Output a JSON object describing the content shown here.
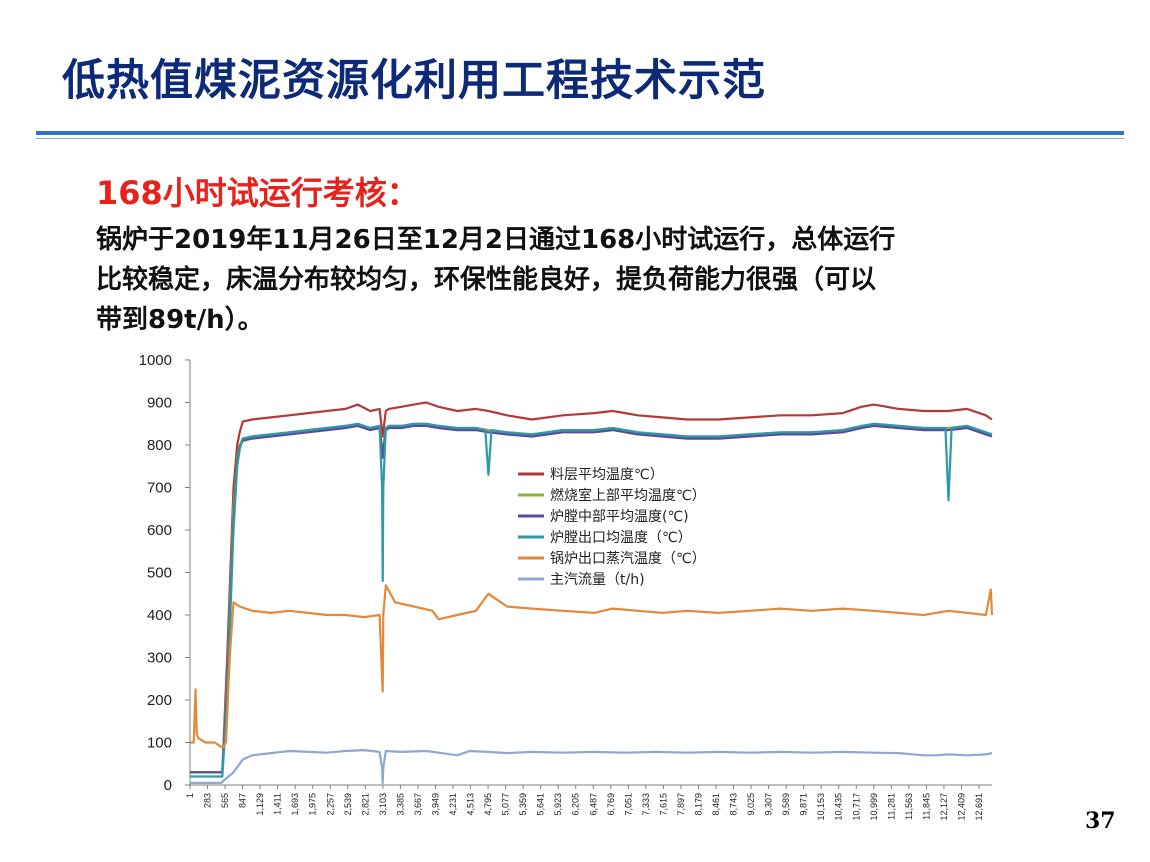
{
  "header": {
    "title": "低热值煤泥资源化利用工程技术示范"
  },
  "section": {
    "heading": "168小时试运行考核：",
    "lines": [
      "锅炉于2019年11月26日至12月2日通过168小时试运行，总体运行",
      "比较稳定，床温分布较均匀，环保性能良好，提负荷能力很强（可以",
      "带到89t/h）。"
    ]
  },
  "page_number": "37",
  "chart_data": {
    "type": "line",
    "title": "",
    "xlabel": "",
    "ylabel": "",
    "ylim": [
      0,
      1000
    ],
    "yticks": [
      0,
      100,
      200,
      300,
      400,
      500,
      600,
      700,
      800,
      900,
      1000
    ],
    "xlim": [
      1,
      12900
    ],
    "xtick_labels": [
      "1",
      "283",
      "565",
      "847",
      "1,129",
      "1,411",
      "1,693",
      "1,975",
      "2,257",
      "2,539",
      "2,821",
      "3,103",
      "3,385",
      "3,667",
      "3,949",
      "4,231",
      "4,513",
      "4,795",
      "5,077",
      "5,359",
      "5,641",
      "5,923",
      "6,205",
      "6,487",
      "6,769",
      "7,051",
      "7,333",
      "7,615",
      "7,897",
      "8,179",
      "8,461",
      "8,743",
      "9,025",
      "9,307",
      "9,589",
      "9,871",
      "10,153",
      "10,435",
      "10,717",
      "10,999",
      "11,281",
      "11,563",
      "11,845",
      "12,127",
      "12,409",
      "12,691"
    ],
    "legend_position": "center",
    "grid": false,
    "series": [
      {
        "name": "料层平均温度℃）",
        "color": "#b23a3a",
        "x": [
          1,
          400,
          520,
          600,
          700,
          760,
          800,
          850,
          1000,
          1300,
          1600,
          1900,
          2200,
          2500,
          2700,
          2900,
          3050,
          3100,
          3150,
          3200,
          3400,
          3600,
          3800,
          4000,
          4300,
          4600,
          4800,
          5100,
          5500,
          6000,
          6500,
          6800,
          7200,
          7600,
          8000,
          8500,
          9000,
          9500,
          10000,
          10500,
          10800,
          11000,
          11400,
          11800,
          12200,
          12500,
          12800,
          12900
        ],
        "y": [
          30,
          30,
          30,
          300,
          700,
          800,
          830,
          855,
          860,
          865,
          870,
          875,
          880,
          885,
          895,
          880,
          885,
          820,
          880,
          885,
          890,
          895,
          900,
          890,
          880,
          885,
          880,
          870,
          860,
          870,
          875,
          880,
          870,
          865,
          860,
          860,
          865,
          870,
          870,
          875,
          890,
          895,
          885,
          880,
          880,
          885,
          870,
          860
        ]
      },
      {
        "name": "燃烧室上部平均温度℃）",
        "color": "#8db33a",
        "x": [
          1,
          400,
          520,
          600,
          700,
          760,
          800,
          850,
          1000,
          1300,
          1600,
          1900,
          2200,
          2500,
          2700,
          2900,
          3050,
          3100,
          3150,
          3200,
          3400,
          3600,
          3800,
          4000,
          4300,
          4600,
          4800,
          5100,
          5500,
          6000,
          6500,
          6800,
          7200,
          7600,
          8000,
          8500,
          9000,
          9500,
          10000,
          10500,
          10800,
          11000,
          11400,
          11800,
          12200,
          12500,
          12800,
          12900
        ],
        "y": [
          30,
          30,
          30,
          250,
          650,
          770,
          800,
          815,
          820,
          825,
          830,
          835,
          840,
          845,
          850,
          840,
          845,
          780,
          840,
          845,
          845,
          850,
          850,
          845,
          840,
          840,
          835,
          830,
          825,
          835,
          835,
          840,
          830,
          825,
          820,
          820,
          825,
          830,
          830,
          835,
          845,
          850,
          845,
          840,
          840,
          845,
          830,
          825
        ]
      },
      {
        "name": "炉膛中部平均温度(℃)",
        "color": "#5a4a9a",
        "x": [
          1,
          400,
          520,
          600,
          700,
          760,
          800,
          850,
          1000,
          1300,
          1600,
          1900,
          2200,
          2500,
          2700,
          2900,
          3050,
          3100,
          3150,
          3200,
          3400,
          3600,
          3800,
          4000,
          4300,
          4600,
          4800,
          5100,
          5500,
          6000,
          6500,
          6800,
          7200,
          7600,
          8000,
          8500,
          9000,
          9500,
          10000,
          10500,
          10800,
          11000,
          11400,
          11800,
          12200,
          12500,
          12800,
          12900
        ],
        "y": [
          30,
          30,
          30,
          230,
          620,
          760,
          795,
          810,
          815,
          820,
          825,
          830,
          835,
          840,
          845,
          835,
          840,
          770,
          835,
          840,
          840,
          845,
          845,
          840,
          835,
          835,
          830,
          825,
          820,
          830,
          830,
          835,
          825,
          820,
          815,
          815,
          820,
          825,
          825,
          830,
          840,
          845,
          840,
          835,
          835,
          840,
          825,
          820
        ]
      },
      {
        "name": "炉膛出口均温度（℃）",
        "color": "#2e9aa8",
        "x": [
          1,
          400,
          520,
          600,
          700,
          760,
          800,
          850,
          1000,
          1300,
          1600,
          1900,
          2200,
          2500,
          2700,
          2900,
          3050,
          3090,
          3100,
          3110,
          3150,
          3200,
          3400,
          3600,
          3800,
          4000,
          4300,
          4600,
          4750,
          4800,
          4850,
          5100,
          5500,
          6000,
          6500,
          6800,
          7200,
          7600,
          8000,
          8500,
          9000,
          9500,
          10000,
          10500,
          10800,
          11000,
          11400,
          11800,
          12150,
          12200,
          12250,
          12500,
          12800,
          12900
        ],
        "y": [
          20,
          20,
          20,
          200,
          600,
          750,
          790,
          815,
          820,
          825,
          830,
          835,
          840,
          845,
          850,
          840,
          845,
          700,
          480,
          700,
          840,
          845,
          845,
          850,
          850,
          845,
          840,
          840,
          835,
          730,
          835,
          830,
          825,
          835,
          835,
          840,
          830,
          825,
          820,
          820,
          825,
          830,
          830,
          835,
          845,
          850,
          845,
          840,
          840,
          670,
          840,
          845,
          830,
          825
        ]
      },
      {
        "name": "锅炉出口蒸汽温度（℃）",
        "color": "#e2893a",
        "x": [
          1,
          60,
          90,
          110,
          140,
          250,
          400,
          500,
          540,
          580,
          640,
          700,
          800,
          1000,
          1300,
          1600,
          1900,
          2200,
          2500,
          2800,
          3050,
          3090,
          3100,
          3110,
          3150,
          3300,
          3600,
          3900,
          4000,
          4300,
          4600,
          4800,
          5100,
          5500,
          6000,
          6500,
          6800,
          7200,
          7600,
          8000,
          8500,
          9000,
          9500,
          10000,
          10500,
          11000,
          11400,
          11800,
          12200,
          12500,
          12800,
          12880,
          12900
        ],
        "y": [
          100,
          100,
          225,
          120,
          110,
          100,
          100,
          90,
          90,
          100,
          300,
          430,
          420,
          410,
          405,
          410,
          405,
          400,
          400,
          395,
          400,
          250,
          220,
          400,
          470,
          430,
          420,
          410,
          390,
          400,
          410,
          450,
          420,
          415,
          410,
          405,
          415,
          410,
          405,
          410,
          405,
          410,
          415,
          410,
          415,
          410,
          405,
          400,
          410,
          405,
          400,
          460,
          400
        ]
      },
      {
        "name": "主汽流量（t/h)",
        "color": "#8ea8d0",
        "x": [
          1,
          400,
          500,
          700,
          850,
          1000,
          1300,
          1600,
          1900,
          2200,
          2500,
          2800,
          3050,
          3090,
          3100,
          3110,
          3150,
          3400,
          3800,
          4000,
          4300,
          4500,
          4800,
          5100,
          5500,
          6000,
          6500,
          7000,
          7500,
          8000,
          8500,
          9000,
          9500,
          10000,
          10500,
          11000,
          11400,
          11800,
          12000,
          12200,
          12500,
          12800,
          12900
        ],
        "y": [
          5,
          5,
          5,
          30,
          60,
          70,
          75,
          80,
          78,
          76,
          80,
          82,
          78,
          40,
          5,
          40,
          80,
          78,
          80,
          76,
          70,
          80,
          78,
          75,
          78,
          76,
          78,
          76,
          78,
          76,
          78,
          76,
          78,
          76,
          78,
          76,
          75,
          70,
          70,
          72,
          70,
          72,
          75
        ]
      }
    ]
  }
}
